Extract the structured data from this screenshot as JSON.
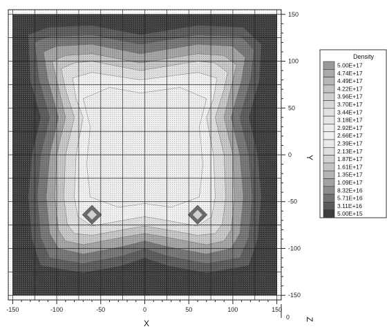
{
  "chart_data": {
    "type": "heatmap",
    "title": "",
    "xlabel": "X",
    "ylabel": "Y",
    "zlabel": "Z",
    "xlim": [
      -155,
      155
    ],
    "ylim": [
      -155,
      155
    ],
    "x_ticks": [
      -150,
      -100,
      -50,
      0,
      50,
      100,
      150
    ],
    "y_ticks": [
      150,
      100,
      50,
      0,
      -50,
      -100,
      -150
    ],
    "z_tick": 0,
    "grid": true,
    "legend_placement": "right",
    "legend": {
      "title": "Density",
      "levels": [
        "5.00E+17",
        "4.74E+17",
        "4.49E+17",
        "4.22E+17",
        "3.96E+17",
        "3.70E+17",
        "3.44E+17",
        "3.18E+17",
        "2.92E+17",
        "2.66E+17",
        "2.39E+17",
        "2.13E+17",
        "1.87E+17",
        "1.61E+17",
        "1.35E+17",
        "1.09E+17",
        "8.32E+16",
        "5.71E+16",
        "3.11E+16",
        "5.00E+15"
      ],
      "colors": [
        "#9a9a9a",
        "#aaaaaa",
        "#b7b7b7",
        "#c3c3c3",
        "#cfcfcf",
        "#d8d8d8",
        "#e0e0e0",
        "#e6e6e6",
        "#ececec",
        "#f0f0f0",
        "#e9e9e9",
        "#dedede",
        "#d2d2d2",
        "#c4c4c4",
        "#b4b4b4",
        "#a2a2a2",
        "#8c8c8c",
        "#747474",
        "#5a5a5a",
        "#3e3e3e"
      ]
    },
    "regions": [
      {
        "level": "5.00E+15",
        "polygon": [
          [
            -150,
            -150
          ],
          [
            150,
            -150
          ],
          [
            150,
            150
          ],
          [
            -150,
            150
          ]
        ]
      },
      {
        "level": "3.11E+16",
        "polygon": [
          [
            -132,
            128
          ],
          [
            -110,
            136
          ],
          [
            -60,
            138
          ],
          [
            -5,
            128
          ],
          [
            60,
            138
          ],
          [
            112,
            136
          ],
          [
            132,
            118
          ],
          [
            130,
            80
          ],
          [
            118,
            40
          ],
          [
            128,
            0
          ],
          [
            132,
            -45
          ],
          [
            128,
            -90
          ],
          [
            118,
            -118
          ],
          [
            70,
            -126
          ],
          [
            25,
            -118
          ],
          [
            0,
            -110
          ],
          [
            -25,
            -118
          ],
          [
            -70,
            -126
          ],
          [
            -118,
            -118
          ],
          [
            -128,
            -90
          ],
          [
            -132,
            -45
          ],
          [
            -128,
            0
          ],
          [
            -118,
            40
          ],
          [
            -130,
            80
          ]
        ]
      },
      {
        "level": "5.71E+16",
        "polygon": [
          [
            -125,
            120
          ],
          [
            -110,
            126
          ],
          [
            -60,
            128
          ],
          [
            -5,
            118
          ],
          [
            60,
            128
          ],
          [
            110,
            126
          ],
          [
            124,
            112
          ],
          [
            120,
            80
          ],
          [
            108,
            40
          ],
          [
            118,
            0
          ],
          [
            122,
            -45
          ],
          [
            118,
            -88
          ],
          [
            108,
            -110
          ],
          [
            70,
            -116
          ],
          [
            25,
            -108
          ],
          [
            0,
            -100
          ],
          [
            -25,
            -108
          ],
          [
            -70,
            -116
          ],
          [
            -108,
            -110
          ],
          [
            -118,
            -88
          ],
          [
            -122,
            -45
          ],
          [
            -118,
            0
          ],
          [
            -108,
            40
          ],
          [
            -120,
            80
          ]
        ]
      },
      {
        "level": "1.09E+17",
        "polygon": [
          [
            -115,
            110
          ],
          [
            -100,
            116
          ],
          [
            -60,
            118
          ],
          [
            -5,
            108
          ],
          [
            60,
            118
          ],
          [
            100,
            116
          ],
          [
            114,
            104
          ],
          [
            110,
            80
          ],
          [
            98,
            40
          ],
          [
            108,
            0
          ],
          [
            112,
            -45
          ],
          [
            108,
            -84
          ],
          [
            98,
            -100
          ],
          [
            70,
            -106
          ],
          [
            25,
            -98
          ],
          [
            0,
            -92
          ],
          [
            -25,
            -98
          ],
          [
            -70,
            -106
          ],
          [
            -98,
            -100
          ],
          [
            -108,
            -84
          ],
          [
            -112,
            -45
          ],
          [
            -108,
            0
          ],
          [
            -98,
            40
          ],
          [
            -110,
            80
          ]
        ]
      },
      {
        "level": "1.61E+17",
        "polygon": [
          [
            -105,
            100
          ],
          [
            -90,
            106
          ],
          [
            -60,
            108
          ],
          [
            -5,
            98
          ],
          [
            60,
            108
          ],
          [
            90,
            106
          ],
          [
            104,
            96
          ],
          [
            100,
            80
          ],
          [
            90,
            40
          ],
          [
            100,
            0
          ],
          [
            102,
            -45
          ],
          [
            98,
            -80
          ],
          [
            90,
            -92
          ],
          [
            70,
            -96
          ],
          [
            25,
            -88
          ],
          [
            0,
            -84
          ],
          [
            -25,
            -88
          ],
          [
            -70,
            -96
          ],
          [
            -90,
            -92
          ],
          [
            -98,
            -80
          ],
          [
            -102,
            -45
          ],
          [
            -100,
            0
          ],
          [
            -90,
            40
          ],
          [
            -100,
            80
          ]
        ]
      },
      {
        "level": "2.13E+17",
        "polygon": [
          [
            -95,
            92
          ],
          [
            -80,
            98
          ],
          [
            -60,
            100
          ],
          [
            -5,
            90
          ],
          [
            60,
            100
          ],
          [
            80,
            98
          ],
          [
            94,
            88
          ],
          [
            90,
            70
          ],
          [
            80,
            40
          ],
          [
            90,
            0
          ],
          [
            92,
            -45
          ],
          [
            88,
            -74
          ],
          [
            80,
            -84
          ],
          [
            60,
            -86
          ],
          [
            25,
            -80
          ],
          [
            0,
            -76
          ],
          [
            -25,
            -80
          ],
          [
            -60,
            -86
          ],
          [
            -80,
            -84
          ],
          [
            -88,
            -74
          ],
          [
            -92,
            -45
          ],
          [
            -90,
            0
          ],
          [
            -80,
            40
          ],
          [
            -90,
            70
          ]
        ]
      },
      {
        "level": "2.66E+17",
        "polygon": [
          [
            -82,
            82
          ],
          [
            -60,
            88
          ],
          [
            -5,
            80
          ],
          [
            60,
            88
          ],
          [
            82,
            82
          ],
          [
            78,
            60
          ],
          [
            70,
            40
          ],
          [
            78,
            0
          ],
          [
            80,
            -45
          ],
          [
            76,
            -66
          ],
          [
            60,
            -76
          ],
          [
            25,
            -70
          ],
          [
            0,
            -66
          ],
          [
            -25,
            -70
          ],
          [
            -60,
            -76
          ],
          [
            -76,
            -66
          ],
          [
            -80,
            -45
          ],
          [
            -78,
            0
          ],
          [
            -70,
            40
          ],
          [
            -78,
            60
          ]
        ]
      },
      {
        "level": "2.92E+17",
        "polygon": [
          [
            -70,
            60
          ],
          [
            -40,
            72
          ],
          [
            -5,
            66
          ],
          [
            40,
            72
          ],
          [
            70,
            60
          ],
          [
            62,
            30
          ],
          [
            66,
            -10
          ],
          [
            62,
            -45
          ],
          [
            30,
            -56
          ],
          [
            0,
            -52
          ],
          [
            -30,
            -56
          ],
          [
            -62,
            -45
          ],
          [
            -66,
            -10
          ],
          [
            -62,
            30
          ]
        ]
      }
    ],
    "dark_spots": [
      {
        "x": -60,
        "y": -64
      },
      {
        "x": 60,
        "y": -64
      }
    ]
  }
}
